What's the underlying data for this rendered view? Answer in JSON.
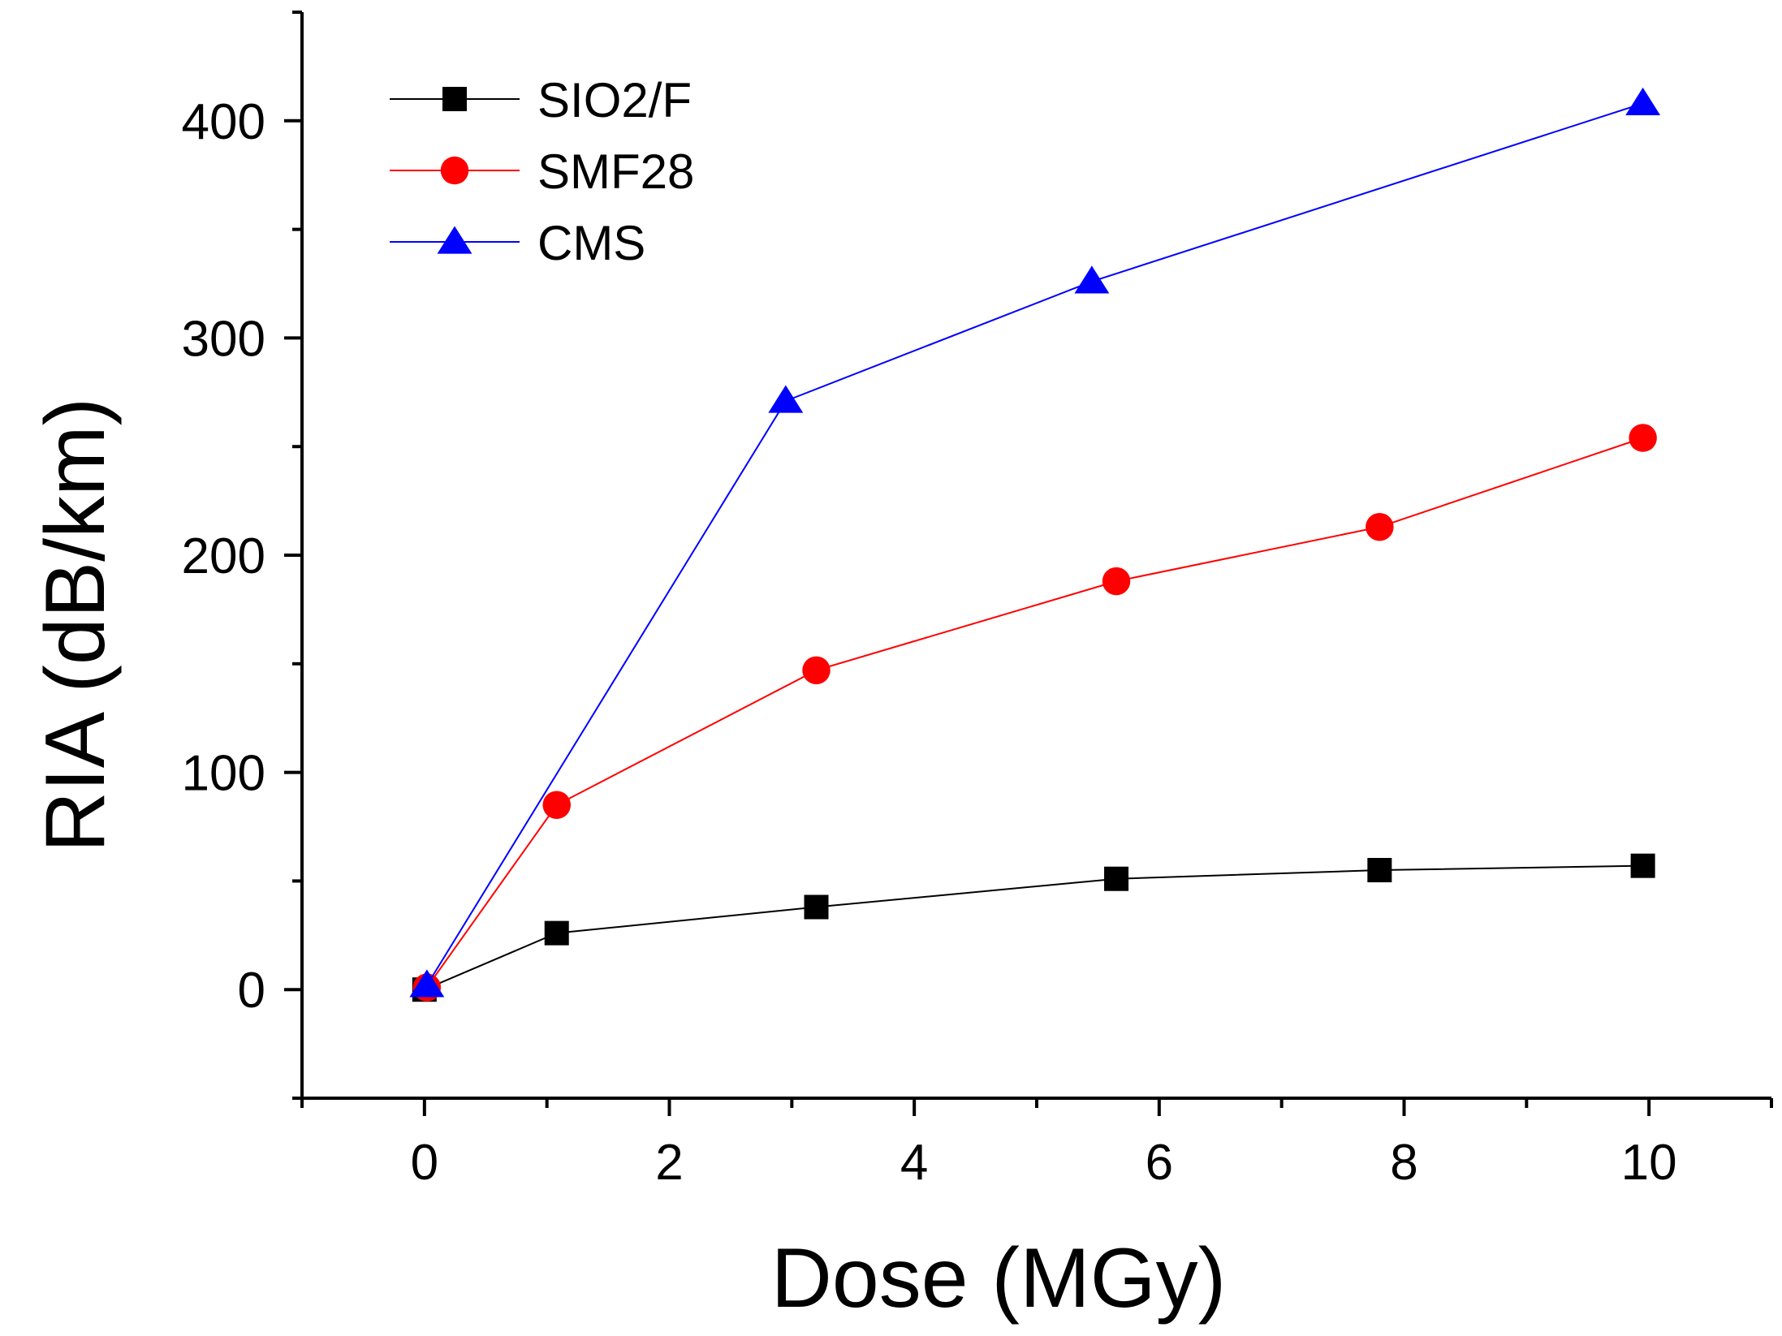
{
  "chart_data": {
    "type": "line",
    "title": "",
    "xlabel": "Dose (MGy)",
    "ylabel": "RIA (dB/km)",
    "xlim": [
      -1,
      11
    ],
    "ylim": [
      -50,
      450
    ],
    "x_ticks": [
      0,
      2,
      4,
      6,
      8,
      10
    ],
    "x_minor_ticks": [
      -1,
      1,
      3,
      5,
      7,
      9,
      11
    ],
    "y_ticks": [
      0,
      100,
      200,
      300,
      400
    ],
    "y_minor_ticks": [
      -50,
      50,
      150,
      250,
      350,
      450
    ],
    "grid": false,
    "legend_position": "top-left",
    "series": [
      {
        "name": "SIO2/F",
        "color": "#000000",
        "marker": "square",
        "x": [
          0,
          1.08,
          3.2,
          5.65,
          7.8,
          9.95
        ],
        "y": [
          0,
          26,
          38,
          51,
          55,
          57
        ]
      },
      {
        "name": "SMF28",
        "color": "#ff0000",
        "marker": "circle",
        "x": [
          0.02,
          1.08,
          3.2,
          5.65,
          7.8,
          9.95
        ],
        "y": [
          1,
          85,
          147,
          188,
          213,
          254
        ]
      },
      {
        "name": "CMS",
        "color": "#0000ff",
        "marker": "triangle",
        "x": [
          0.02,
          2.95,
          5.45,
          9.95
        ],
        "y": [
          2,
          271,
          326,
          408
        ]
      }
    ]
  }
}
